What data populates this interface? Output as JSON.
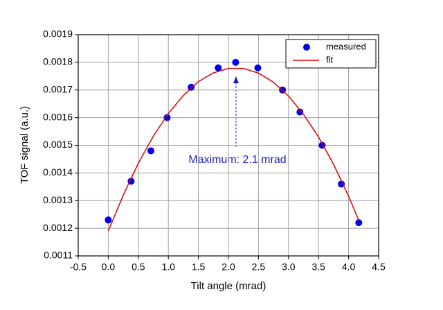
{
  "chart_data": {
    "type": "scatter",
    "x_label": "Tilt angle (mrad)",
    "y_label": "TOF signal (a.u.)",
    "annotation": "Maximum: 2.1 mrad",
    "xlim": [
      -0.5,
      4.5
    ],
    "xticks": [
      -0.5,
      {
        "value": 0,
        "label": "0.0"
      },
      0.5,
      {
        "value": 1,
        "label": "1.0"
      },
      1.5,
      {
        "value": 2,
        "label": "2.0"
      },
      2.5,
      {
        "value": 3,
        "label": "3.0"
      },
      3.5,
      {
        "value": 4,
        "label": "4.0"
      },
      4.5
    ],
    "ylim": [
      0.0011,
      0.0019
    ],
    "yticks": [
      0.0011,
      0.0012,
      0.0013,
      0.0014,
      0.0015,
      0.0016,
      0.0017,
      0.0018,
      0.0019
    ],
    "grid": true,
    "legend": "upper right",
    "series": [
      {
        "name": "measured",
        "type": "scatter",
        "color": "#0000ee",
        "x": [
          0,
          0.38,
          0.71,
          0.98,
          1.38,
          1.83,
          2.12,
          2.49,
          2.9,
          3.19,
          3.56,
          3.88,
          4.17
        ],
        "values": [
          0.00123,
          0.00137,
          0.00148,
          0.0016,
          0.00171,
          0.00178,
          0.0018,
          0.00178,
          0.0017,
          0.00162,
          0.0015,
          0.00136,
          0.00122
        ]
      },
      {
        "name": "fit",
        "type": "line",
        "color": "#dd0000",
        "x": [
          0,
          0.25,
          0.5,
          0.75,
          1,
          1.25,
          1.5,
          1.75,
          2,
          2.25,
          2.5,
          2.75,
          3,
          3.25,
          3.5,
          3.75,
          4,
          4.17
        ],
        "values": [
          0.00119,
          0.00132,
          0.001435,
          0.001533,
          0.001615,
          0.00168,
          0.00173,
          0.001762,
          0.001778,
          0.001778,
          0.001761,
          0.001728,
          0.001678,
          0.001612,
          0.00153,
          0.001431,
          0.001316,
          0.001228
        ]
      }
    ]
  }
}
